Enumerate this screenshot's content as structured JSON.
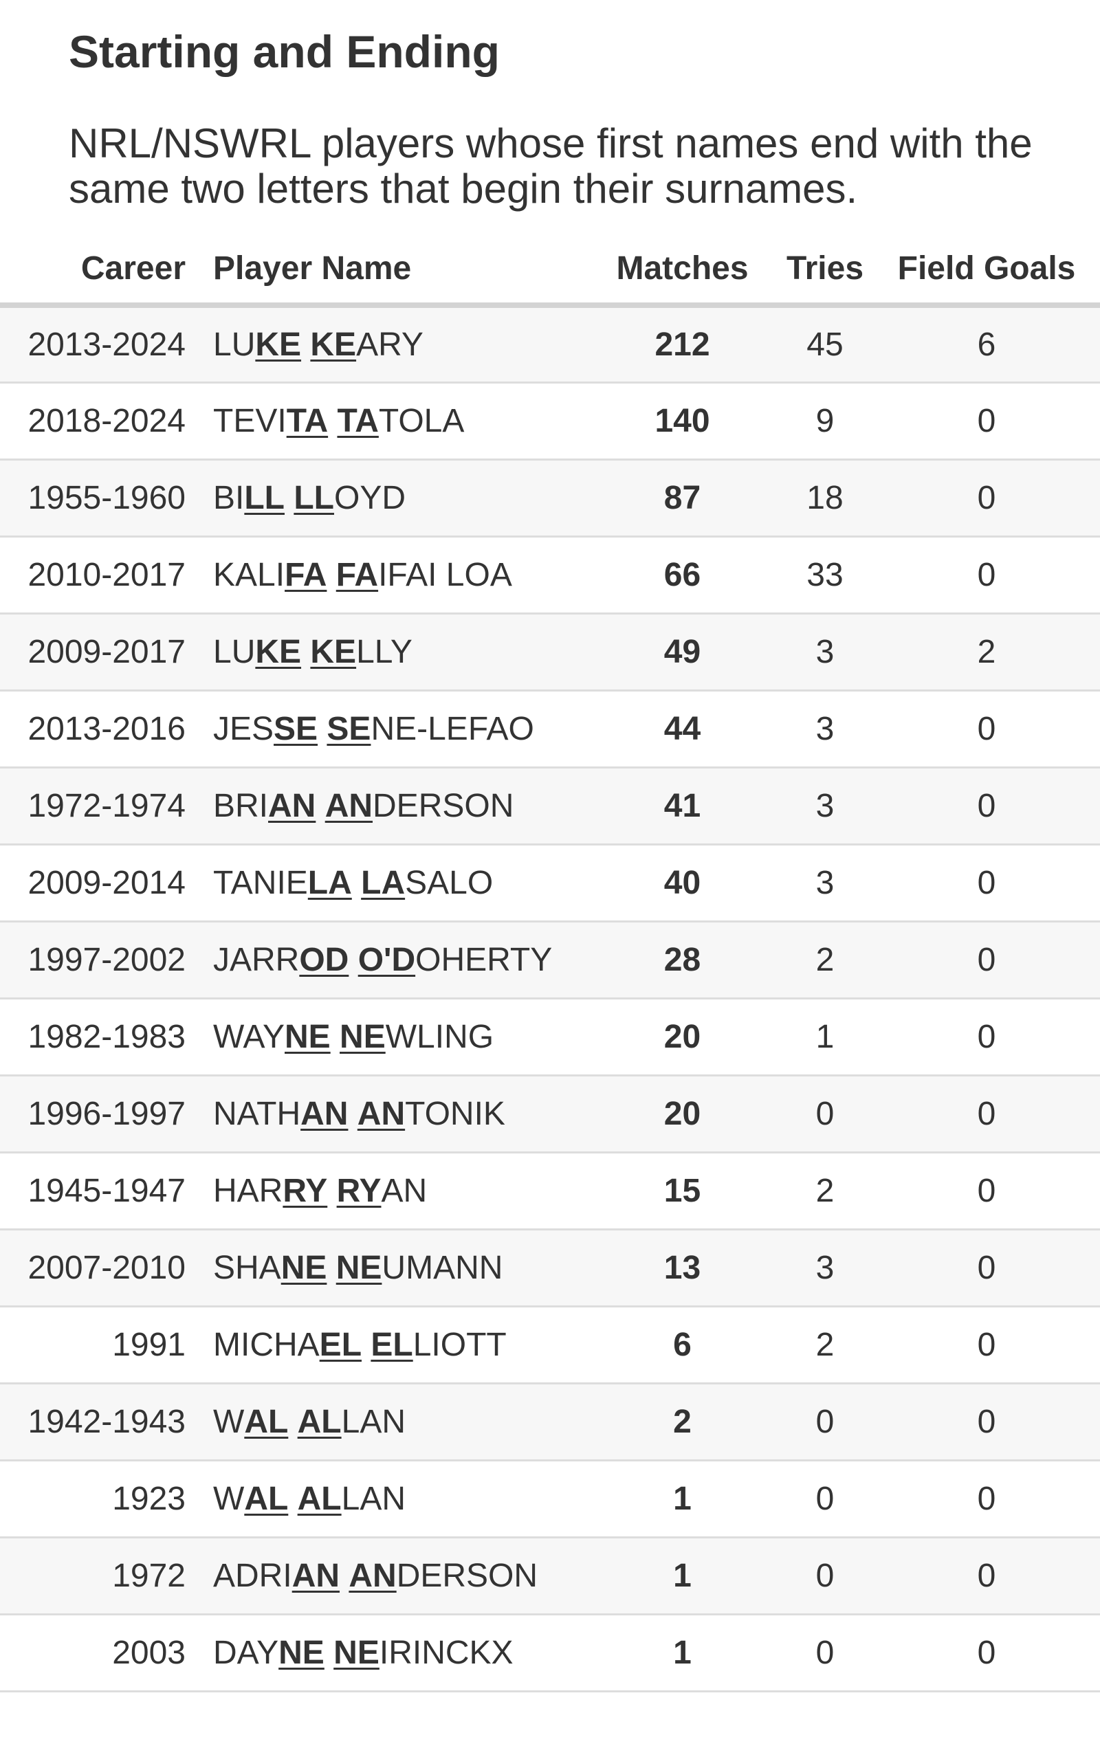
{
  "title": "Starting and Ending",
  "subtitle": "NRL/NSWRL players whose first names end with the same two letters that begin their surnames.",
  "columns": {
    "career": "Career",
    "player": "Player Name",
    "matches": "Matches",
    "tries": "Tries",
    "field_goals": "Field Goals"
  },
  "rows": [
    {
      "career": "2013-2024",
      "first": {
        "pre": "LU",
        "hl": "KE"
      },
      "last": {
        "hl": "KE",
        "post": "ARY"
      },
      "matches": "212",
      "tries": "45",
      "field_goals": "6"
    },
    {
      "career": "2018-2024",
      "first": {
        "pre": "TEVI",
        "hl": "TA"
      },
      "last": {
        "hl": "TA",
        "post": "TOLA"
      },
      "matches": "140",
      "tries": "9",
      "field_goals": "0"
    },
    {
      "career": "1955-1960",
      "first": {
        "pre": "BI",
        "hl": "LL"
      },
      "last": {
        "hl": "LL",
        "post": "OYD"
      },
      "matches": "87",
      "tries": "18",
      "field_goals": "0"
    },
    {
      "career": "2010-2017",
      "first": {
        "pre": "KALI",
        "hl": "FA"
      },
      "last": {
        "hl": "FA",
        "post": "IFAI LOA"
      },
      "matches": "66",
      "tries": "33",
      "field_goals": "0"
    },
    {
      "career": "2009-2017",
      "first": {
        "pre": "LU",
        "hl": "KE"
      },
      "last": {
        "hl": "KE",
        "post": "LLY"
      },
      "matches": "49",
      "tries": "3",
      "field_goals": "2"
    },
    {
      "career": "2013-2016",
      "first": {
        "pre": "JES",
        "hl": "SE"
      },
      "last": {
        "hl": "SE",
        "post": "NE-LEFAO"
      },
      "matches": "44",
      "tries": "3",
      "field_goals": "0"
    },
    {
      "career": "1972-1974",
      "first": {
        "pre": "BRI",
        "hl": "AN"
      },
      "last": {
        "hl": "AN",
        "post": "DERSON"
      },
      "matches": "41",
      "tries": "3",
      "field_goals": "0"
    },
    {
      "career": "2009-2014",
      "first": {
        "pre": "TANIE",
        "hl": "LA"
      },
      "last": {
        "hl": "LA",
        "post": "SALO"
      },
      "matches": "40",
      "tries": "3",
      "field_goals": "0"
    },
    {
      "career": "1997-2002",
      "first": {
        "pre": "JARR",
        "hl": "OD"
      },
      "last": {
        "hl": "O'D",
        "post": "OHERTY"
      },
      "matches": "28",
      "tries": "2",
      "field_goals": "0"
    },
    {
      "career": "1982-1983",
      "first": {
        "pre": "WAY",
        "hl": "NE"
      },
      "last": {
        "hl": "NE",
        "post": "WLING"
      },
      "matches": "20",
      "tries": "1",
      "field_goals": "0"
    },
    {
      "career": "1996-1997",
      "first": {
        "pre": "NATH",
        "hl": "AN"
      },
      "last": {
        "hl": "AN",
        "post": "TONIK"
      },
      "matches": "20",
      "tries": "0",
      "field_goals": "0"
    },
    {
      "career": "1945-1947",
      "first": {
        "pre": "HAR",
        "hl": "RY"
      },
      "last": {
        "hl": "RY",
        "post": "AN"
      },
      "matches": "15",
      "tries": "2",
      "field_goals": "0"
    },
    {
      "career": "2007-2010",
      "first": {
        "pre": "SHA",
        "hl": "NE"
      },
      "last": {
        "hl": "NE",
        "post": "UMANN"
      },
      "matches": "13",
      "tries": "3",
      "field_goals": "0"
    },
    {
      "career": "1991",
      "first": {
        "pre": "MICHA",
        "hl": "EL"
      },
      "last": {
        "hl": "EL",
        "post": "LIOTT"
      },
      "matches": "6",
      "tries": "2",
      "field_goals": "0"
    },
    {
      "career": "1942-1943",
      "first": {
        "pre": "W",
        "hl": "AL"
      },
      "last": {
        "hl": "AL",
        "post": "LAN"
      },
      "matches": "2",
      "tries": "0",
      "field_goals": "0"
    },
    {
      "career": "1923",
      "first": {
        "pre": "W",
        "hl": "AL"
      },
      "last": {
        "hl": "AL",
        "post": "LAN"
      },
      "matches": "1",
      "tries": "0",
      "field_goals": "0"
    },
    {
      "career": "1972",
      "first": {
        "pre": "ADRI",
        "hl": "AN"
      },
      "last": {
        "hl": "AN",
        "post": "DERSON"
      },
      "matches": "1",
      "tries": "0",
      "field_goals": "0"
    },
    {
      "career": "2003",
      "first": {
        "pre": "DAY",
        "hl": "NE"
      },
      "last": {
        "hl": "NE",
        "post": "IRINCKX"
      },
      "matches": "1",
      "tries": "0",
      "field_goals": "0"
    }
  ]
}
